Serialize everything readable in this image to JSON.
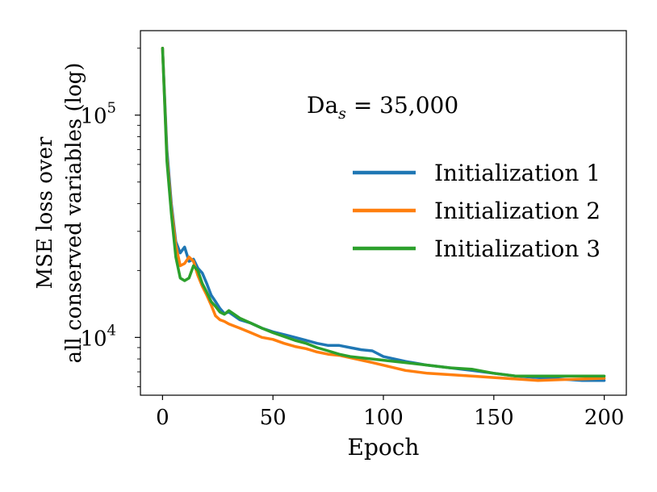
{
  "chart_data": {
    "type": "line",
    "title": "",
    "annotation": {
      "main": "Da",
      "subscript": "s",
      "rest": " = 35,000"
    },
    "xlabel": "Epoch",
    "ylabel_line1": "MSE loss over",
    "ylabel_line2": "all conserved variables (log)",
    "xlim": [
      -10,
      210
    ],
    "ylim_log10": [
      3.74,
      5.38
    ],
    "yscale": "log",
    "x_ticks": [
      0,
      50,
      100,
      150,
      200
    ],
    "x_tick_labels": [
      "0",
      "50",
      "100",
      "150",
      "200"
    ],
    "y_ticks": [
      {
        "value": 10000,
        "base": "10",
        "exp": "4"
      },
      {
        "value": 100000,
        "base": "10",
        "exp": "5"
      }
    ],
    "legend_position": "right",
    "series": [
      {
        "name": "Initialization 1",
        "color": "#1f77b4",
        "x": [
          0,
          2,
          4,
          6,
          8,
          10,
          12,
          14,
          16,
          18,
          20,
          22,
          24,
          26,
          28,
          30,
          35,
          40,
          45,
          50,
          55,
          60,
          65,
          70,
          75,
          80,
          85,
          90,
          95,
          100,
          110,
          120,
          130,
          140,
          150,
          160,
          170,
          180,
          190,
          200
        ],
        "y": [
          200000,
          70000,
          40000,
          27000,
          24000,
          25500,
          22000,
          22500,
          20500,
          19500,
          17500,
          15500,
          14500,
          13500,
          12800,
          13000,
          12000,
          11600,
          11000,
          10600,
          10300,
          10000,
          9700,
          9400,
          9200,
          9200,
          9000,
          8800,
          8700,
          8200,
          7800,
          7500,
          7300,
          7100,
          6900,
          6700,
          6600,
          6500,
          6400,
          6400
        ]
      },
      {
        "name": "Initialization 2",
        "color": "#ff7f0e",
        "x": [
          0,
          2,
          4,
          6,
          8,
          10,
          12,
          14,
          16,
          18,
          20,
          22,
          24,
          26,
          28,
          30,
          35,
          40,
          45,
          50,
          55,
          60,
          65,
          70,
          75,
          80,
          85,
          90,
          95,
          100,
          110,
          120,
          130,
          140,
          150,
          160,
          170,
          180,
          190,
          200
        ],
        "y": [
          200000,
          65000,
          38000,
          26000,
          21000,
          21500,
          23000,
          22000,
          19000,
          17000,
          15500,
          14000,
          12500,
          12000,
          11800,
          11500,
          11000,
          10500,
          10000,
          9800,
          9400,
          9100,
          8900,
          8600,
          8400,
          8300,
          8100,
          7900,
          7700,
          7500,
          7100,
          6900,
          6800,
          6700,
          6600,
          6500,
          6400,
          6450,
          6500,
          6550
        ]
      },
      {
        "name": "Initialization 3",
        "color": "#2ca02c",
        "x": [
          0,
          2,
          4,
          6,
          8,
          10,
          12,
          14,
          16,
          18,
          20,
          22,
          24,
          26,
          28,
          30,
          35,
          40,
          45,
          50,
          55,
          60,
          65,
          70,
          75,
          80,
          85,
          90,
          95,
          100,
          110,
          120,
          130,
          140,
          150,
          160,
          170,
          180,
          190,
          200
        ],
        "y": [
          200000,
          62000,
          36000,
          23000,
          18500,
          18000,
          18500,
          21000,
          20000,
          17500,
          16000,
          14500,
          13800,
          13000,
          12700,
          13200,
          12200,
          11600,
          11000,
          10500,
          10100,
          9700,
          9400,
          9000,
          8700,
          8400,
          8200,
          8100,
          8000,
          7900,
          7700,
          7500,
          7300,
          7200,
          6900,
          6700,
          6700,
          6700,
          6700,
          6700
        ]
      }
    ]
  }
}
